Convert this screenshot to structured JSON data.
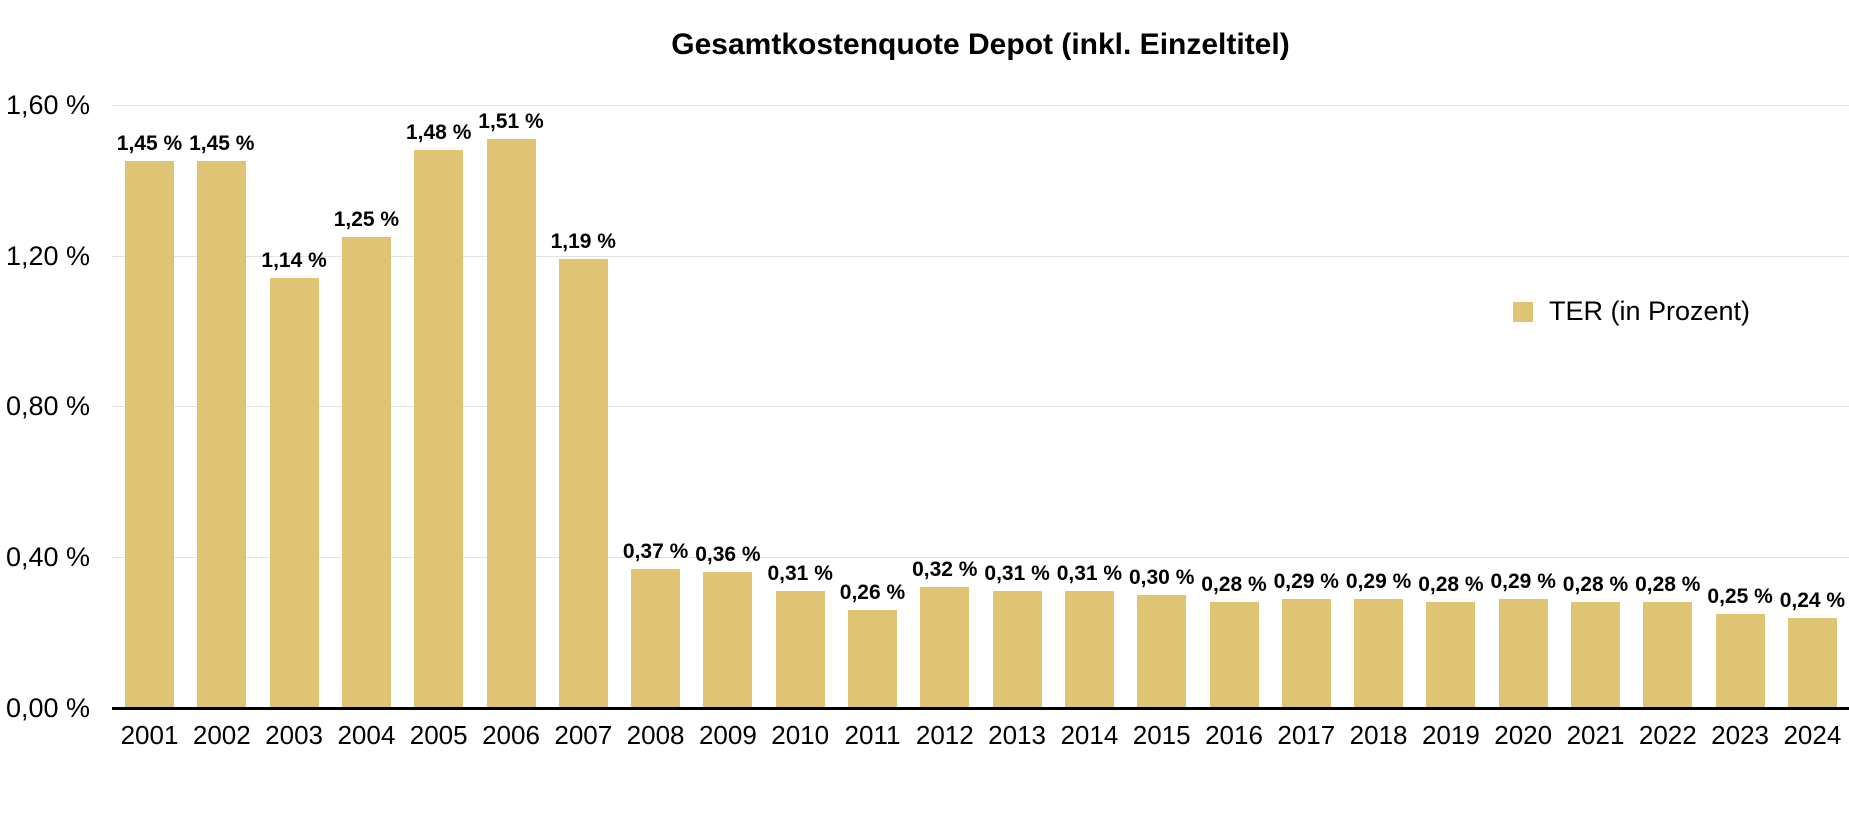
{
  "chart_data": {
    "type": "bar",
    "title": "Gesamtkostenquote Depot (inkl. Einzeltitel)",
    "categories": [
      "2001",
      "2002",
      "2003",
      "2004",
      "2005",
      "2006",
      "2007",
      "2008",
      "2009",
      "2010",
      "2011",
      "2012",
      "2013",
      "2014",
      "2015",
      "2016",
      "2017",
      "2018",
      "2019",
      "2020",
      "2021",
      "2022",
      "2023",
      "2024"
    ],
    "values": [
      1.45,
      1.45,
      1.14,
      1.25,
      1.48,
      1.51,
      1.19,
      0.37,
      0.36,
      0.31,
      0.26,
      0.32,
      0.31,
      0.31,
      0.3,
      0.28,
      0.29,
      0.29,
      0.28,
      0.29,
      0.28,
      0.28,
      0.25,
      0.24
    ],
    "value_labels": [
      "1,45 %",
      "1,45 %",
      "1,14 %",
      "1,25 %",
      "1,48 %",
      "1,51 %",
      "1,19 %",
      "0,37 %",
      "0,36 %",
      "0,31 %",
      "0,26 %",
      "0,32 %",
      "0,31 %",
      "0,31 %",
      "0,30 %",
      "0,28 %",
      "0,29 %",
      "0,29 %",
      "0,28 %",
      "0,29 %",
      "0,28 %",
      "0,28 %",
      "0,25 %",
      "0,24 %"
    ],
    "y_ticks": [
      {
        "value": 1.6,
        "label": "1,60 %"
      },
      {
        "value": 1.2,
        "label": "1,20 %"
      },
      {
        "value": 0.8,
        "label": "0,80 %"
      },
      {
        "value": 0.4,
        "label": "0,40 %"
      },
      {
        "value": 0.0,
        "label": "0,00 %"
      }
    ],
    "ylim": [
      0,
      1.6
    ],
    "xlabel": "",
    "ylabel": "",
    "grid": true,
    "legend": {
      "label": "TER (in Prozent)",
      "position": "right"
    },
    "colors": {
      "bar": "#dfc473",
      "gridline": "#e3e3e3",
      "axis": "#000000",
      "text": "#000000",
      "background": "#ffffff"
    }
  }
}
